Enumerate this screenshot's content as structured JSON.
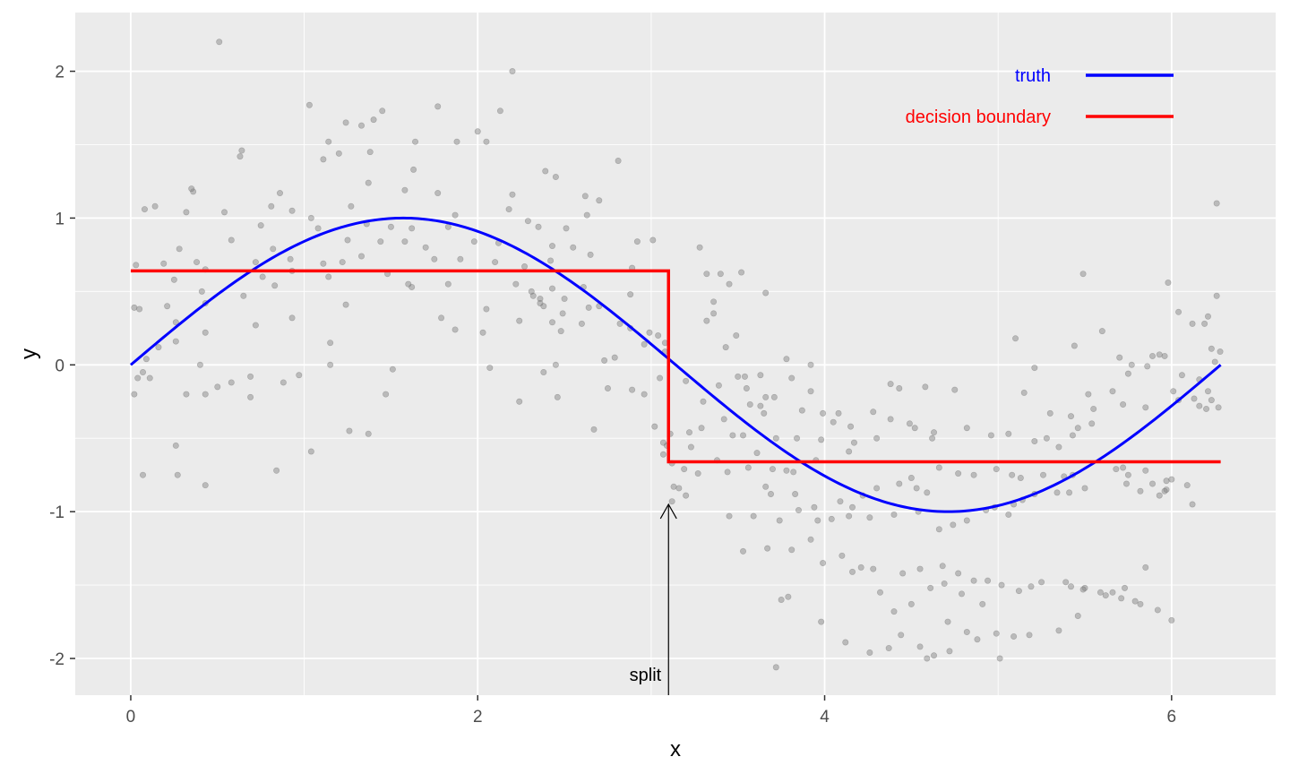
{
  "chart_data": {
    "type": "scatter",
    "xlabel": "x",
    "ylabel": "y",
    "xlim": [
      -0.32,
      6.6
    ],
    "ylim": [
      -2.25,
      2.4
    ],
    "x_ticks": [
      0,
      2,
      4,
      6
    ],
    "x_tick_labels": [
      "0",
      "2",
      "4",
      "6"
    ],
    "y_ticks": [
      -2,
      -1,
      0,
      1,
      2
    ],
    "y_tick_labels": [
      "-2",
      "-1",
      "0",
      "1",
      "2"
    ],
    "grid": true,
    "legend_position": "top-right",
    "colors": {
      "panel_background": "#ebebeb",
      "grid": "#ffffff",
      "points": "#7f7f7f",
      "truth": "#0000ff",
      "decision_boundary": "#ff0000",
      "annotation": "#000000"
    },
    "series": [
      {
        "name": "truth",
        "kind": "line",
        "color": "#0000ff",
        "function": "sin(x)",
        "x_range": [
          0,
          6.283
        ]
      },
      {
        "name": "decision boundary",
        "kind": "step",
        "color": "#ff0000",
        "segments": [
          {
            "x_start": 0,
            "x_end": 3.1,
            "y": 0.64
          },
          {
            "x_start": 3.1,
            "x_end": 6.283,
            "y": -0.66
          }
        ],
        "split_x": 3.1
      }
    ],
    "points": [
      [
        0.51,
        2.2
      ],
      [
        2.2,
        2.0
      ],
      [
        1.03,
        1.77
      ],
      [
        1.77,
        1.76
      ],
      [
        1.45,
        1.73
      ],
      [
        2.13,
        1.73
      ],
      [
        1.4,
        1.67
      ],
      [
        1.24,
        1.65
      ],
      [
        1.33,
        1.63
      ],
      [
        2.0,
        1.59
      ],
      [
        1.64,
        1.52
      ],
      [
        1.14,
        1.52
      ],
      [
        1.88,
        1.52
      ],
      [
        2.05,
        1.52
      ],
      [
        1.11,
        1.4
      ],
      [
        1.38,
        1.45
      ],
      [
        0.64,
        1.46
      ],
      [
        1.2,
        1.44
      ],
      [
        1.63,
        1.33
      ],
      [
        0.63,
        1.42
      ],
      [
        1.37,
        1.24
      ],
      [
        2.81,
        1.39
      ],
      [
        2.39,
        1.32
      ],
      [
        2.45,
        1.28
      ],
      [
        1.58,
        1.19
      ],
      [
        0.86,
        1.17
      ],
      [
        2.2,
        1.16
      ],
      [
        2.62,
        1.15
      ],
      [
        2.7,
        1.12
      ],
      [
        0.36,
        1.18
      ],
      [
        0.35,
        1.2
      ],
      [
        1.77,
        1.17
      ],
      [
        0.14,
        1.08
      ],
      [
        0.54,
        1.04
      ],
      [
        0.81,
        1.08
      ],
      [
        0.93,
        1.05
      ],
      [
        1.27,
        1.08
      ],
      [
        0.32,
        1.04
      ],
      [
        0.08,
        1.06
      ],
      [
        1.87,
        1.02
      ],
      [
        2.63,
        1.02
      ],
      [
        2.18,
        1.06
      ],
      [
        1.04,
        1.0
      ],
      [
        2.29,
        0.98
      ],
      [
        0.75,
        0.95
      ],
      [
        1.08,
        0.93
      ],
      [
        1.36,
        0.96
      ],
      [
        1.5,
        0.94
      ],
      [
        1.62,
        0.93
      ],
      [
        1.83,
        0.94
      ],
      [
        2.35,
        0.94
      ],
      [
        2.51,
        0.93
      ],
      [
        0.58,
        0.85
      ],
      [
        0.28,
        0.79
      ],
      [
        0.82,
        0.79
      ],
      [
        1.25,
        0.85
      ],
      [
        1.44,
        0.84
      ],
      [
        1.58,
        0.84
      ],
      [
        1.7,
        0.8
      ],
      [
        1.98,
        0.84
      ],
      [
        2.12,
        0.83
      ],
      [
        2.43,
        0.81
      ],
      [
        2.55,
        0.8
      ],
      [
        2.92,
        0.84
      ],
      [
        3.01,
        0.85
      ],
      [
        3.28,
        0.8
      ],
      [
        2.65,
        0.75
      ],
      [
        2.42,
        0.71
      ],
      [
        1.9,
        0.72
      ],
      [
        1.75,
        0.72
      ],
      [
        1.22,
        0.7
      ],
      [
        0.92,
        0.72
      ],
      [
        0.72,
        0.7
      ],
      [
        0.38,
        0.7
      ],
      [
        0.19,
        0.69
      ],
      [
        0.03,
        0.68
      ],
      [
        1.11,
        0.69
      ],
      [
        1.33,
        0.74
      ],
      [
        2.1,
        0.7
      ],
      [
        2.89,
        0.66
      ],
      [
        2.27,
        0.67
      ],
      [
        1.48,
        0.62
      ],
      [
        0.93,
        0.64
      ],
      [
        0.43,
        0.65
      ],
      [
        0.25,
        0.58
      ],
      [
        0.76,
        0.6
      ],
      [
        1.14,
        0.6
      ],
      [
        0.83,
        0.54
      ],
      [
        1.62,
        0.53
      ],
      [
        1.6,
        0.55
      ],
      [
        1.83,
        0.55
      ],
      [
        2.22,
        0.55
      ],
      [
        2.43,
        0.52
      ],
      [
        2.61,
        0.53
      ],
      [
        2.31,
        0.5
      ],
      [
        2.32,
        0.47
      ],
      [
        2.36,
        0.45
      ],
      [
        2.5,
        0.45
      ],
      [
        2.88,
        0.48
      ],
      [
        3.32,
        0.62
      ],
      [
        3.4,
        0.62
      ],
      [
        3.52,
        0.63
      ],
      [
        2.36,
        0.42
      ],
      [
        2.7,
        0.4
      ],
      [
        2.38,
        0.4
      ],
      [
        2.64,
        0.39
      ],
      [
        3.36,
        0.43
      ],
      [
        3.66,
        0.49
      ],
      [
        2.05,
        0.38
      ],
      [
        1.24,
        0.41
      ],
      [
        0.65,
        0.47
      ],
      [
        0.43,
        0.42
      ],
      [
        0.21,
        0.4
      ],
      [
        0.02,
        0.39
      ],
      [
        0.05,
        0.38
      ],
      [
        2.49,
        0.35
      ],
      [
        3.36,
        0.35
      ],
      [
        3.32,
        0.3
      ],
      [
        2.6,
        0.28
      ],
      [
        2.82,
        0.28
      ],
      [
        2.43,
        0.29
      ],
      [
        2.88,
        0.25
      ],
      [
        2.99,
        0.22
      ],
      [
        2.24,
        0.3
      ],
      [
        2.48,
        0.23
      ],
      [
        2.03,
        0.22
      ],
      [
        1.87,
        0.24
      ],
      [
        1.15,
        0.15
      ],
      [
        0.93,
        0.32
      ],
      [
        0.72,
        0.27
      ],
      [
        0.43,
        0.22
      ],
      [
        0.26,
        0.29
      ],
      [
        0.26,
        0.16
      ],
      [
        0.16,
        0.12
      ],
      [
        0.09,
        0.04
      ],
      [
        3.04,
        0.2
      ],
      [
        3.08,
        0.15
      ],
      [
        3.08,
        0.09
      ],
      [
        3.43,
        0.12
      ],
      [
        3.49,
        0.2
      ],
      [
        3.78,
        0.04
      ],
      [
        3.92,
        0.0
      ],
      [
        2.79,
        0.05
      ],
      [
        2.45,
        0.0
      ],
      [
        2.07,
        -0.02
      ],
      [
        1.51,
        -0.03
      ],
      [
        1.15,
        0.0
      ],
      [
        0.4,
        0.0
      ],
      [
        0.07,
        -0.05
      ],
      [
        0.11,
        -0.09
      ],
      [
        0.04,
        -0.09
      ],
      [
        2.38,
        -0.05
      ],
      [
        3.5,
        -0.08
      ],
      [
        3.54,
        -0.08
      ],
      [
        3.63,
        -0.07
      ],
      [
        3.81,
        -0.09
      ],
      [
        2.75,
        -0.16
      ],
      [
        2.89,
        -0.17
      ],
      [
        2.96,
        -0.2
      ],
      [
        3.05,
        -0.09
      ],
      [
        3.2,
        -0.11
      ],
      [
        3.55,
        -0.16
      ],
      [
        3.39,
        -0.14
      ],
      [
        3.71,
        -0.22
      ],
      [
        2.24,
        -0.25
      ],
      [
        2.46,
        -0.22
      ],
      [
        3.3,
        -0.25
      ],
      [
        3.57,
        -0.27
      ],
      [
        3.63,
        -0.28
      ],
      [
        3.65,
        -0.33
      ],
      [
        3.87,
        -0.31
      ],
      [
        3.99,
        -0.33
      ],
      [
        4.08,
        -0.33
      ],
      [
        4.28,
        -0.32
      ],
      [
        4.38,
        -0.37
      ],
      [
        4.05,
        -0.39
      ],
      [
        4.15,
        -0.42
      ],
      [
        4.49,
        -0.4
      ],
      [
        4.63,
        -0.46
      ],
      [
        4.52,
        -0.43
      ],
      [
        4.38,
        -0.13
      ],
      [
        4.43,
        -0.16
      ],
      [
        4.58,
        -0.15
      ],
      [
        4.75,
        -0.17
      ],
      [
        5.15,
        -0.19
      ],
      [
        5.21,
        -0.02
      ],
      [
        5.55,
        -0.3
      ],
      [
        5.72,
        -0.27
      ],
      [
        5.85,
        -0.29
      ],
      [
        6.04,
        -0.24
      ],
      [
        6.23,
        -0.24
      ],
      [
        6.21,
        -0.18
      ],
      [
        6.13,
        -0.23
      ],
      [
        6.01,
        -0.18
      ],
      [
        6.2,
        -0.3
      ],
      [
        6.16,
        -0.28
      ],
      [
        6.06,
        -0.07
      ],
      [
        6.16,
        -0.1
      ],
      [
        6.27,
        -0.29
      ],
      [
        6.25,
        0.02
      ],
      [
        6.28,
        0.09
      ],
      [
        6.23,
        0.11
      ],
      [
        6.19,
        0.28
      ],
      [
        6.21,
        0.33
      ],
      [
        6.12,
        0.28
      ],
      [
        6.04,
        0.36
      ],
      [
        6.26,
        0.47
      ],
      [
        6.26,
        1.1
      ],
      [
        5.98,
        0.56
      ],
      [
        5.49,
        0.62
      ],
      [
        5.6,
        0.23
      ],
      [
        5.44,
        0.13
      ],
      [
        5.1,
        0.18
      ],
      [
        5.77,
        0.0
      ],
      [
        5.89,
        0.06
      ],
      [
        5.96,
        0.06
      ],
      [
        5.75,
        -0.06
      ],
      [
        5.93,
        0.07
      ],
      [
        5.52,
        -0.2
      ],
      [
        5.66,
        -0.18
      ],
      [
        5.3,
        -0.33
      ],
      [
        5.42,
        -0.35
      ],
      [
        5.46,
        -0.43
      ],
      [
        5.54,
        -0.4
      ],
      [
        5.43,
        -0.48
      ],
      [
        5.28,
        -0.5
      ],
      [
        5.35,
        -0.56
      ],
      [
        5.21,
        -0.52
      ],
      [
        5.06,
        -0.47
      ],
      [
        4.96,
        -0.48
      ],
      [
        4.82,
        -0.43
      ],
      [
        4.62,
        -0.5
      ],
      [
        4.3,
        -0.5
      ],
      [
        4.17,
        -0.53
      ],
      [
        4.14,
        -0.59
      ],
      [
        3.98,
        -0.51
      ],
      [
        3.84,
        -0.5
      ],
      [
        3.72,
        -0.5
      ],
      [
        3.53,
        -0.48
      ],
      [
        3.47,
        -0.48
      ],
      [
        3.29,
        -0.43
      ],
      [
        3.42,
        -0.37
      ],
      [
        3.22,
        -0.46
      ],
      [
        3.11,
        -0.47
      ],
      [
        3.02,
        -0.42
      ],
      [
        3.09,
        -0.55
      ],
      [
        3.07,
        -0.53
      ],
      [
        3.07,
        -0.61
      ],
      [
        3.12,
        -0.67
      ],
      [
        3.19,
        -0.71
      ],
      [
        3.27,
        -0.74
      ],
      [
        3.13,
        -0.83
      ],
      [
        3.16,
        -0.84
      ],
      [
        3.2,
        -0.89
      ],
      [
        3.12,
        -0.93
      ],
      [
        3.44,
        -0.73
      ],
      [
        3.56,
        -0.7
      ],
      [
        3.7,
        -0.71
      ],
      [
        3.66,
        -0.83
      ],
      [
        3.78,
        -0.72
      ],
      [
        3.82,
        -0.73
      ],
      [
        3.69,
        -0.88
      ],
      [
        3.83,
        -0.88
      ],
      [
        3.85,
        -0.99
      ],
      [
        3.94,
        -0.97
      ],
      [
        4.09,
        -0.93
      ],
      [
        4.16,
        -0.97
      ],
      [
        4.22,
        -0.89
      ],
      [
        4.3,
        -0.84
      ],
      [
        4.43,
        -0.81
      ],
      [
        4.53,
        -0.84
      ],
      [
        4.59,
        -0.87
      ],
      [
        4.5,
        -0.77
      ],
      [
        4.66,
        -0.7
      ],
      [
        4.77,
        -0.74
      ],
      [
        4.86,
        -0.75
      ],
      [
        4.99,
        -0.71
      ],
      [
        5.08,
        -0.75
      ],
      [
        5.13,
        -0.77
      ],
      [
        5.26,
        -0.75
      ],
      [
        5.38,
        -0.76
      ],
      [
        5.43,
        -0.75
      ],
      [
        5.68,
        -0.71
      ],
      [
        5.72,
        -0.7
      ],
      [
        5.75,
        -0.75
      ],
      [
        5.85,
        -0.72
      ],
      [
        5.89,
        -0.81
      ],
      [
        5.97,
        -0.79
      ],
      [
        6.0,
        -0.78
      ],
      [
        6.09,
        -0.82
      ],
      [
        6.12,
        -0.95
      ],
      [
        5.97,
        -0.85
      ],
      [
        5.96,
        -0.86
      ],
      [
        5.93,
        -0.89
      ],
      [
        5.82,
        -0.86
      ],
      [
        5.74,
        -0.81
      ],
      [
        5.5,
        -0.84
      ],
      [
        5.41,
        -0.87
      ],
      [
        5.34,
        -0.87
      ],
      [
        5.21,
        -0.88
      ],
      [
        5.14,
        -0.92
      ],
      [
        5.09,
        -0.95
      ],
      [
        5.06,
        -1.02
      ],
      [
        4.98,
        -0.97
      ],
      [
        4.93,
        -0.99
      ],
      [
        4.82,
        -1.06
      ],
      [
        4.74,
        -1.09
      ],
      [
        4.66,
        -1.12
      ],
      [
        4.54,
        -1.0
      ],
      [
        4.4,
        -1.02
      ],
      [
        4.26,
        -1.04
      ],
      [
        4.14,
        -1.03
      ],
      [
        4.04,
        -1.05
      ],
      [
        3.96,
        -1.06
      ],
      [
        3.92,
        -1.19
      ],
      [
        3.74,
        -1.06
      ],
      [
        3.59,
        -1.03
      ],
      [
        3.45,
        -1.03
      ],
      [
        3.53,
        -1.27
      ],
      [
        3.67,
        -1.25
      ],
      [
        3.81,
        -1.26
      ],
      [
        3.99,
        -1.35
      ],
      [
        4.1,
        -1.3
      ],
      [
        4.21,
        -1.38
      ],
      [
        4.16,
        -1.41
      ],
      [
        4.28,
        -1.39
      ],
      [
        4.45,
        -1.42
      ],
      [
        4.55,
        -1.39
      ],
      [
        4.68,
        -1.37
      ],
      [
        4.77,
        -1.42
      ],
      [
        4.86,
        -1.47
      ],
      [
        4.94,
        -1.47
      ],
      [
        5.02,
        -1.5
      ],
      [
        5.12,
        -1.54
      ],
      [
        5.19,
        -1.51
      ],
      [
        5.25,
        -1.48
      ],
      [
        5.39,
        -1.48
      ],
      [
        5.42,
        -1.51
      ],
      [
        5.5,
        -1.52
      ],
      [
        5.59,
        -1.55
      ],
      [
        5.66,
        -1.55
      ],
      [
        5.71,
        -1.59
      ],
      [
        5.79,
        -1.61
      ],
      [
        5.82,
        -1.63
      ],
      [
        5.92,
        -1.67
      ],
      [
        6.0,
        -1.74
      ],
      [
        5.85,
        -1.38
      ],
      [
        5.73,
        -1.52
      ],
      [
        5.62,
        -1.57
      ],
      [
        5.49,
        -1.53
      ],
      [
        5.46,
        -1.71
      ],
      [
        5.35,
        -1.81
      ],
      [
        5.18,
        -1.84
      ],
      [
        5.09,
        -1.85
      ],
      [
        4.99,
        -1.83
      ],
      [
        4.88,
        -1.87
      ],
      [
        4.72,
        -1.95
      ],
      [
        4.63,
        -1.98
      ],
      [
        4.55,
        -1.92
      ],
      [
        4.44,
        -1.84
      ],
      [
        4.37,
        -1.93
      ],
      [
        4.26,
        -1.96
      ],
      [
        4.12,
        -1.89
      ],
      [
        3.98,
        -1.75
      ],
      [
        3.79,
        -1.58
      ],
      [
        3.75,
        -1.6
      ],
      [
        3.72,
        -2.06
      ],
      [
        4.59,
        -2.0
      ],
      [
        5.01,
        -2.0
      ],
      [
        4.32,
        -1.55
      ],
      [
        4.4,
        -1.68
      ],
      [
        4.5,
        -1.63
      ],
      [
        4.61,
        -1.52
      ],
      [
        4.69,
        -1.49
      ],
      [
        4.79,
        -1.56
      ],
      [
        4.91,
        -1.63
      ],
      [
        4.82,
        -1.82
      ],
      [
        4.71,
        -1.75
      ],
      [
        3.95,
        -0.65
      ],
      [
        3.61,
        -0.6
      ],
      [
        3.38,
        -0.65
      ],
      [
        3.23,
        -0.56
      ],
      [
        3.66,
        -0.22
      ],
      [
        3.92,
        -0.18
      ],
      [
        1.26,
        -0.45
      ],
      [
        1.47,
        -0.2
      ],
      [
        1.04,
        -0.59
      ],
      [
        0.84,
        -0.72
      ],
      [
        0.43,
        -0.82
      ],
      [
        0.27,
        -0.75
      ],
      [
        0.26,
        -0.55
      ],
      [
        0.07,
        -0.75
      ],
      [
        0.02,
        -0.2
      ],
      [
        0.32,
        -0.2
      ],
      [
        0.43,
        -0.2
      ],
      [
        0.5,
        -0.15
      ],
      [
        0.58,
        -0.12
      ],
      [
        0.69,
        -0.08
      ],
      [
        0.69,
        -0.22
      ],
      [
        0.88,
        -0.12
      ],
      [
        1.37,
        -0.47
      ],
      [
        0.41,
        0.5
      ],
      [
        0.97,
        -0.07
      ],
      [
        1.79,
        0.32
      ],
      [
        3.45,
        0.55
      ],
      [
        5.7,
        0.05
      ],
      [
        5.86,
        -0.01
      ],
      [
        2.73,
        0.03
      ],
      [
        2.67,
        -0.44
      ],
      [
        2.96,
        0.14
      ]
    ],
    "legend": [
      {
        "label": "truth",
        "color": "#0000ff"
      },
      {
        "label": "decision boundary",
        "color": "#ff0000"
      }
    ],
    "annotations": [
      {
        "text": "split",
        "x": 3.1,
        "y_tip": -0.95,
        "y_tail": -2.25,
        "arrow": true
      }
    ]
  }
}
